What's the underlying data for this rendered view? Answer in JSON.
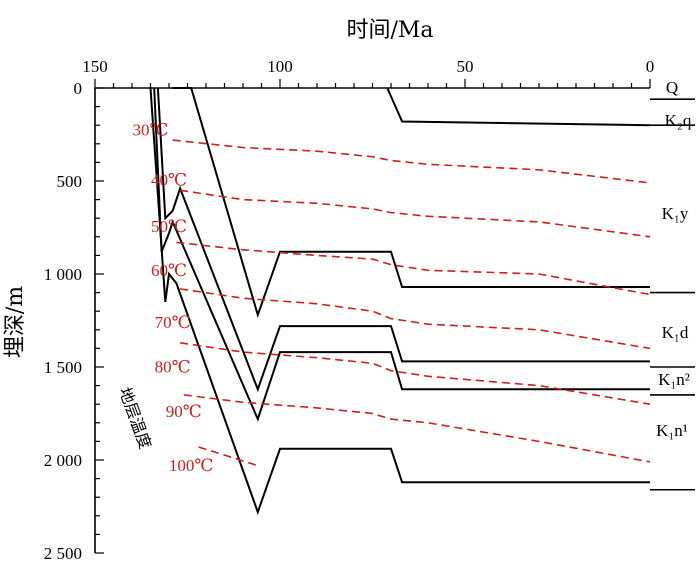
{
  "chart_data": {
    "type": "line",
    "xlabel": "时间/Ma",
    "ylabel": "埋深/m",
    "xlim": [
      150,
      0
    ],
    "ylim": [
      0,
      2500
    ],
    "x_ticks": [
      150,
      100,
      50,
      0
    ],
    "y_ticks": [
      0,
      500,
      1000,
      1500,
      2000,
      2500
    ],
    "y_tick_labels": [
      "0",
      "500",
      "1 000",
      "1 500",
      "2 000",
      "2 500"
    ],
    "vertical_label": "地层温度",
    "burial_curves": [
      {
        "points": [
          [
            129,
            0
          ],
          [
            124,
            0
          ],
          [
            106,
            1220
          ],
          [
            100,
            880
          ],
          [
            70,
            880
          ],
          [
            67,
            1070
          ],
          [
            0,
            1070
          ]
        ]
      },
      {
        "points": [
          [
            133,
            0
          ],
          [
            131,
            700
          ],
          [
            129,
            660
          ],
          [
            127,
            540
          ],
          [
            106,
            1620
          ],
          [
            100,
            1280
          ],
          [
            70,
            1280
          ],
          [
            67,
            1470
          ],
          [
            0,
            1470
          ]
        ]
      },
      {
        "points": [
          [
            134,
            0
          ],
          [
            132,
            880
          ],
          [
            130,
            780
          ],
          [
            129,
            720
          ],
          [
            106,
            1780
          ],
          [
            100,
            1420
          ],
          [
            70,
            1420
          ],
          [
            67,
            1620
          ],
          [
            0,
            1620
          ]
        ]
      },
      {
        "points": [
          [
            135,
            0
          ],
          [
            131,
            1150
          ],
          [
            130,
            1000
          ],
          [
            128,
            1050
          ],
          [
            106,
            2280
          ],
          [
            100,
            1940
          ],
          [
            70,
            1940
          ],
          [
            67,
            2120
          ],
          [
            0,
            2120
          ]
        ]
      },
      {
        "points": [
          [
            71,
            0
          ],
          [
            67,
            180
          ],
          [
            0,
            200
          ]
        ]
      }
    ],
    "isotherms": [
      {
        "name": "30℃",
        "points": [
          [
            129,
            280
          ],
          [
            110,
            320
          ],
          [
            90,
            340
          ],
          [
            75,
            370
          ],
          [
            70,
            390
          ],
          [
            60,
            410
          ],
          [
            30,
            440
          ],
          [
            0,
            510
          ]
        ]
      },
      {
        "points": [
          [
            127,
            550
          ],
          [
            110,
            600
          ],
          [
            90,
            620
          ],
          [
            75,
            650
          ],
          [
            70,
            670
          ],
          [
            60,
            690
          ],
          [
            30,
            720
          ],
          [
            0,
            800
          ]
        ]
      },
      {
        "points": [
          [
            128,
            830
          ],
          [
            110,
            870
          ],
          [
            90,
            900
          ],
          [
            75,
            920
          ],
          [
            70,
            950
          ],
          [
            60,
            980
          ],
          [
            30,
            1000
          ],
          [
            0,
            1110
          ]
        ]
      },
      {
        "points": [
          [
            127,
            1080
          ],
          [
            110,
            1130
          ],
          [
            90,
            1160
          ],
          [
            75,
            1200
          ],
          [
            70,
            1240
          ],
          [
            60,
            1270
          ],
          [
            30,
            1300
          ],
          [
            0,
            1400
          ]
        ]
      },
      {
        "points": [
          [
            127,
            1370
          ],
          [
            110,
            1420
          ],
          [
            90,
            1450
          ],
          [
            75,
            1480
          ],
          [
            70,
            1520
          ],
          [
            60,
            1550
          ],
          [
            30,
            1600
          ],
          [
            0,
            1700
          ]
        ]
      },
      {
        "points": [
          [
            126,
            1650
          ],
          [
            110,
            1690
          ],
          [
            90,
            1720
          ],
          [
            75,
            1750
          ],
          [
            70,
            1780
          ],
          [
            60,
            1800
          ],
          [
            30,
            1900
          ],
          [
            0,
            2010
          ]
        ]
      },
      {
        "points": [
          [
            122,
            1930
          ],
          [
            106,
            2030
          ]
        ]
      }
    ],
    "isotherm_labels": [
      {
        "text": "30℃",
        "x": 135,
        "y": 255
      },
      {
        "text": "40℃",
        "x": 130,
        "y": 525
      },
      {
        "text": "50℃",
        "x": 130,
        "y": 775
      },
      {
        "text": "60℃",
        "x": 130,
        "y": 1010
      },
      {
        "text": "70℃",
        "x": 129,
        "y": 1290
      },
      {
        "text": "80℃",
        "x": 129,
        "y": 1530
      },
      {
        "text": "90℃",
        "x": 126,
        "y": 1770
      },
      {
        "text": "100℃",
        "x": 124,
        "y": 2060
      }
    ],
    "strata": [
      {
        "label": "Q"
      },
      {
        "label": "K₂q"
      },
      {
        "label": "K₁y"
      },
      {
        "label": "K₁d"
      },
      {
        "label": "K₁n²"
      },
      {
        "label": "K₁n¹"
      }
    ],
    "strata_boundaries": [
      60,
      200,
      1100,
      1500,
      1650,
      2160
    ],
    "colors": {
      "burial": "#000000",
      "isotherm": "#cc1f1f"
    }
  }
}
